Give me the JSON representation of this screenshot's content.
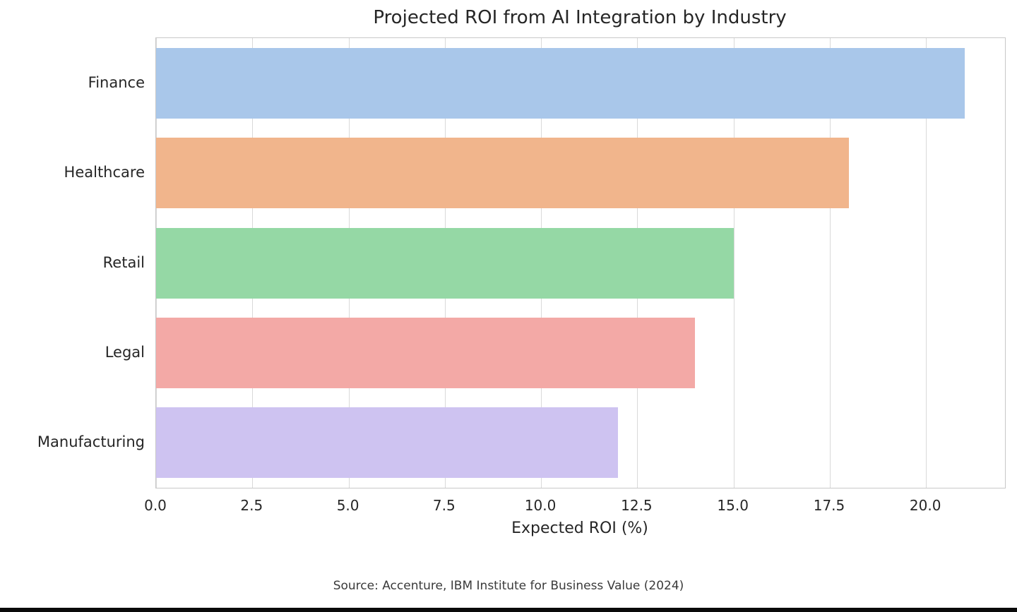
{
  "figure": {
    "title": "Projected ROI from AI Integration by Industry",
    "xlabel": "Expected ROI (%)",
    "source_note": "Source: Accenture, IBM Institute for Business Value (2024)"
  },
  "chart_data": {
    "type": "bar",
    "orientation": "horizontal",
    "title": "Projected ROI from AI Integration by Industry",
    "categories": [
      "Finance",
      "Healthcare",
      "Retail",
      "Legal",
      "Manufacturing"
    ],
    "values": [
      21,
      18,
      15,
      14,
      12
    ],
    "bar_colors": [
      "#a9c7ea",
      "#f1b58c",
      "#95d8a5",
      "#f3a9a6",
      "#cec3f1"
    ],
    "xlabel": "Expected ROI (%)",
    "ylabel": "",
    "xlim": [
      0,
      22.05
    ],
    "xticks": [
      0,
      2.5,
      5,
      7.5,
      10,
      12.5,
      15,
      17.5,
      20
    ],
    "xtick_labels": [
      "0.0",
      "2.5",
      "5.0",
      "7.5",
      "10.0",
      "12.5",
      "15.0",
      "17.5",
      "20.0"
    ],
    "grid": "vertical",
    "legend": "none",
    "annotation": "Source: Accenture, IBM Institute for Business Value (2024)"
  },
  "colors": {
    "background": "#ffffff",
    "text": "#262626",
    "gridline": "#d9d9d9",
    "plot_border": "#c8c8c8",
    "bottom_bar": "#0a0a0a"
  }
}
